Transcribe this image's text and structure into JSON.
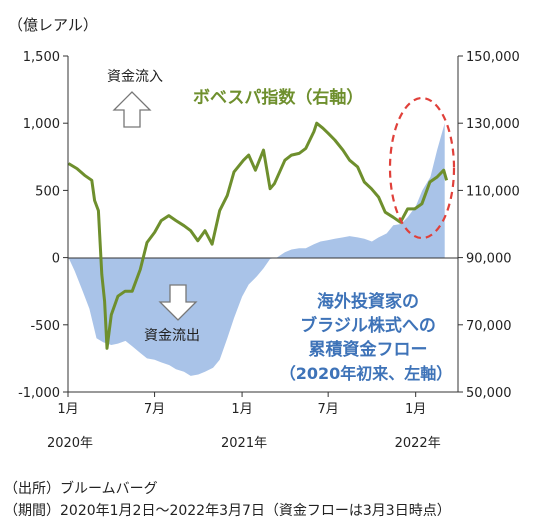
{
  "chart_data": {
    "type": "line",
    "title": "",
    "left_unit": "（億レアル）",
    "x_tick_labels": [
      "1月",
      "7月",
      "1月",
      "7月",
      "1月"
    ],
    "x_year_labels": [
      "2020年",
      "2021年",
      "2022年"
    ],
    "left_axis": {
      "ylim": [
        -1000,
        1500
      ],
      "ticks": [
        "1,500",
        "1,000",
        "500",
        "0",
        "-500",
        "-1,000"
      ]
    },
    "right_axis": {
      "ylim": [
        50000,
        150000
      ],
      "ticks": [
        "150,000",
        "130,000",
        "110,000",
        "90,000",
        "70,000",
        "50,000"
      ]
    },
    "series": [
      {
        "name": "ボベスパ指数（右軸）",
        "axis": "right",
        "chart": "line",
        "color": "#6e8f2d",
        "x": [
          "2020-01-02",
          "2020-01-20",
          "2020-02-05",
          "2020-02-20",
          "2020-02-26",
          "2020-03-05",
          "2020-03-12",
          "2020-03-18",
          "2020-03-23",
          "2020-04-01",
          "2020-04-15",
          "2020-04-30",
          "2020-05-15",
          "2020-06-01",
          "2020-06-15",
          "2020-07-01",
          "2020-07-15",
          "2020-07-31",
          "2020-08-15",
          "2020-09-01",
          "2020-09-15",
          "2020-09-30",
          "2020-10-15",
          "2020-10-30",
          "2020-11-15",
          "2020-12-01",
          "2020-12-15",
          "2021-01-04",
          "2021-01-15",
          "2021-01-29",
          "2021-02-15",
          "2021-03-01",
          "2021-03-10",
          "2021-04-01",
          "2021-04-15",
          "2021-05-01",
          "2021-05-15",
          "2021-06-01",
          "2021-06-07",
          "2021-06-20",
          "2021-07-01",
          "2021-07-15",
          "2021-08-01",
          "2021-08-15",
          "2021-09-01",
          "2021-09-15",
          "2021-09-30",
          "2021-10-15",
          "2021-10-29",
          "2021-11-15",
          "2021-11-30",
          "2021-12-15",
          "2021-12-30",
          "2022-01-14",
          "2022-01-31",
          "2022-02-15",
          "2022-03-01",
          "2022-03-07"
        ],
        "values": [
          118000,
          116500,
          114500,
          113000,
          107000,
          104000,
          85000,
          77000,
          63000,
          73000,
          78500,
          80000,
          80000,
          86500,
          94500,
          97500,
          101000,
          102500,
          101000,
          99500,
          98000,
          95000,
          98000,
          94000,
          104000,
          108500,
          115500,
          119000,
          120500,
          116000,
          122000,
          110500,
          112000,
          119000,
          120500,
          121000,
          122500,
          127500,
          130000,
          128500,
          127000,
          125000,
          122000,
          119000,
          117000,
          112500,
          110500,
          108000,
          103500,
          102000,
          100500,
          104500,
          104500,
          106000,
          112500,
          114000,
          116000,
          113000
        ]
      },
      {
        "name": "海外投資家のブラジル株式への累積資金フロー（2020年初来、左軸）",
        "axis": "left",
        "chart": "area",
        "color": "#a9c3e8",
        "x": [
          "2020-01-02",
          "2020-01-15",
          "2020-02-01",
          "2020-02-15",
          "2020-03-01",
          "2020-03-15",
          "2020-04-01",
          "2020-04-15",
          "2020-05-01",
          "2020-05-15",
          "2020-06-01",
          "2020-06-15",
          "2020-07-01",
          "2020-07-15",
          "2020-08-01",
          "2020-08-15",
          "2020-09-01",
          "2020-09-15",
          "2020-10-01",
          "2020-10-15",
          "2020-11-01",
          "2020-11-15",
          "2020-12-01",
          "2020-12-15",
          "2021-01-01",
          "2021-01-15",
          "2021-02-01",
          "2021-02-15",
          "2021-03-01",
          "2021-03-15",
          "2021-04-01",
          "2021-04-15",
          "2021-05-01",
          "2021-05-15",
          "2021-06-01",
          "2021-06-15",
          "2021-07-01",
          "2021-07-15",
          "2021-08-01",
          "2021-08-15",
          "2021-09-01",
          "2021-09-15",
          "2021-10-01",
          "2021-10-15",
          "2021-11-01",
          "2021-11-15",
          "2021-12-01",
          "2021-12-15",
          "2022-01-01",
          "2022-01-15",
          "2022-02-01",
          "2022-02-15",
          "2022-03-03"
        ],
        "values": [
          0,
          -100,
          -250,
          -380,
          -600,
          -630,
          -650,
          -640,
          -620,
          -660,
          -710,
          -750,
          -760,
          -780,
          -800,
          -830,
          -850,
          -880,
          -870,
          -850,
          -820,
          -760,
          -600,
          -450,
          -290,
          -200,
          -140,
          -80,
          -10,
          0,
          40,
          60,
          70,
          70,
          100,
          120,
          130,
          140,
          150,
          160,
          150,
          140,
          120,
          150,
          180,
          240,
          250,
          300,
          380,
          500,
          600,
          800,
          1000
        ]
      }
    ],
    "annotations": [
      "資金流入",
      "資金流出"
    ]
  },
  "source_note": "（出所）ブルームバーグ",
  "period_note": "（期間）2020年1月2日～2022年3月7日（資金フローは3月3日時点）"
}
